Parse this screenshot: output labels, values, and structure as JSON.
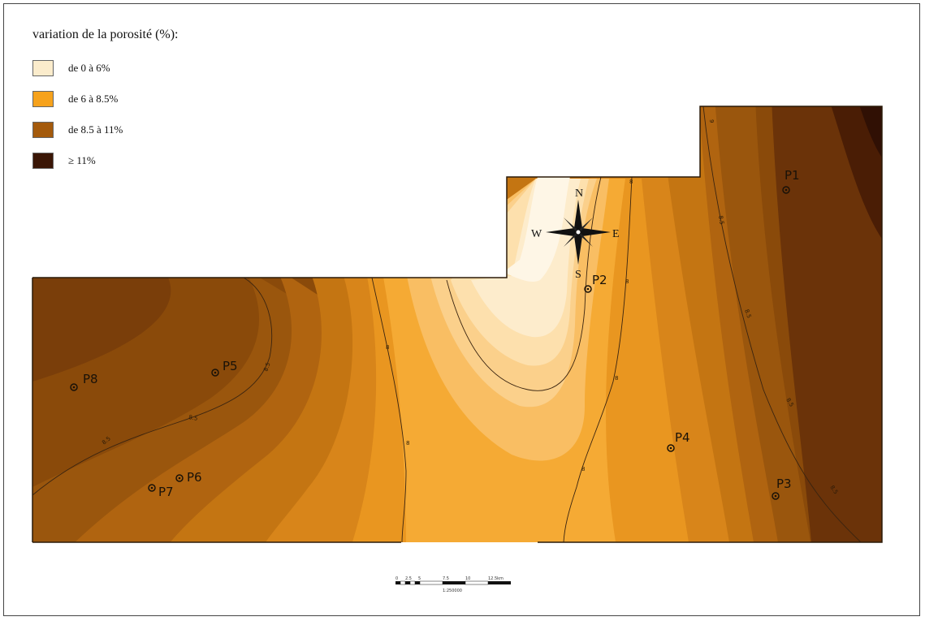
{
  "legend": {
    "title": "variation de la porosité (%):",
    "items": [
      {
        "label": "de 0 à 6%",
        "color": "#fbeccc"
      },
      {
        "label": "de 6 à 8.5%",
        "color": "#f6a21c"
      },
      {
        "label": "de 8.5 à 11%",
        "color": "#a45a0c"
      },
      {
        "label": "≥ 11%",
        "color": "#3a1606"
      }
    ]
  },
  "wells": [
    {
      "label": "P1"
    },
    {
      "label": "P2"
    },
    {
      "label": "P3"
    },
    {
      "label": "P4"
    },
    {
      "label": "P5"
    },
    {
      "label": "P6"
    },
    {
      "label": "P7"
    },
    {
      "label": "P8"
    }
  ],
  "contour_labels": [
    "9",
    "8.5",
    "8.5",
    "8.5",
    "8.5",
    "8.5",
    "8.5",
    "8.5",
    "8",
    "8",
    "8",
    "8",
    "8",
    "8"
  ],
  "compass": {
    "north": "N",
    "south": "S",
    "east": "E",
    "west": "W"
  },
  "scale_bar": {
    "ticks": [
      "0",
      "2.5",
      "5",
      "7.5",
      "10",
      "12.5km"
    ],
    "ratio": "1:250000"
  }
}
